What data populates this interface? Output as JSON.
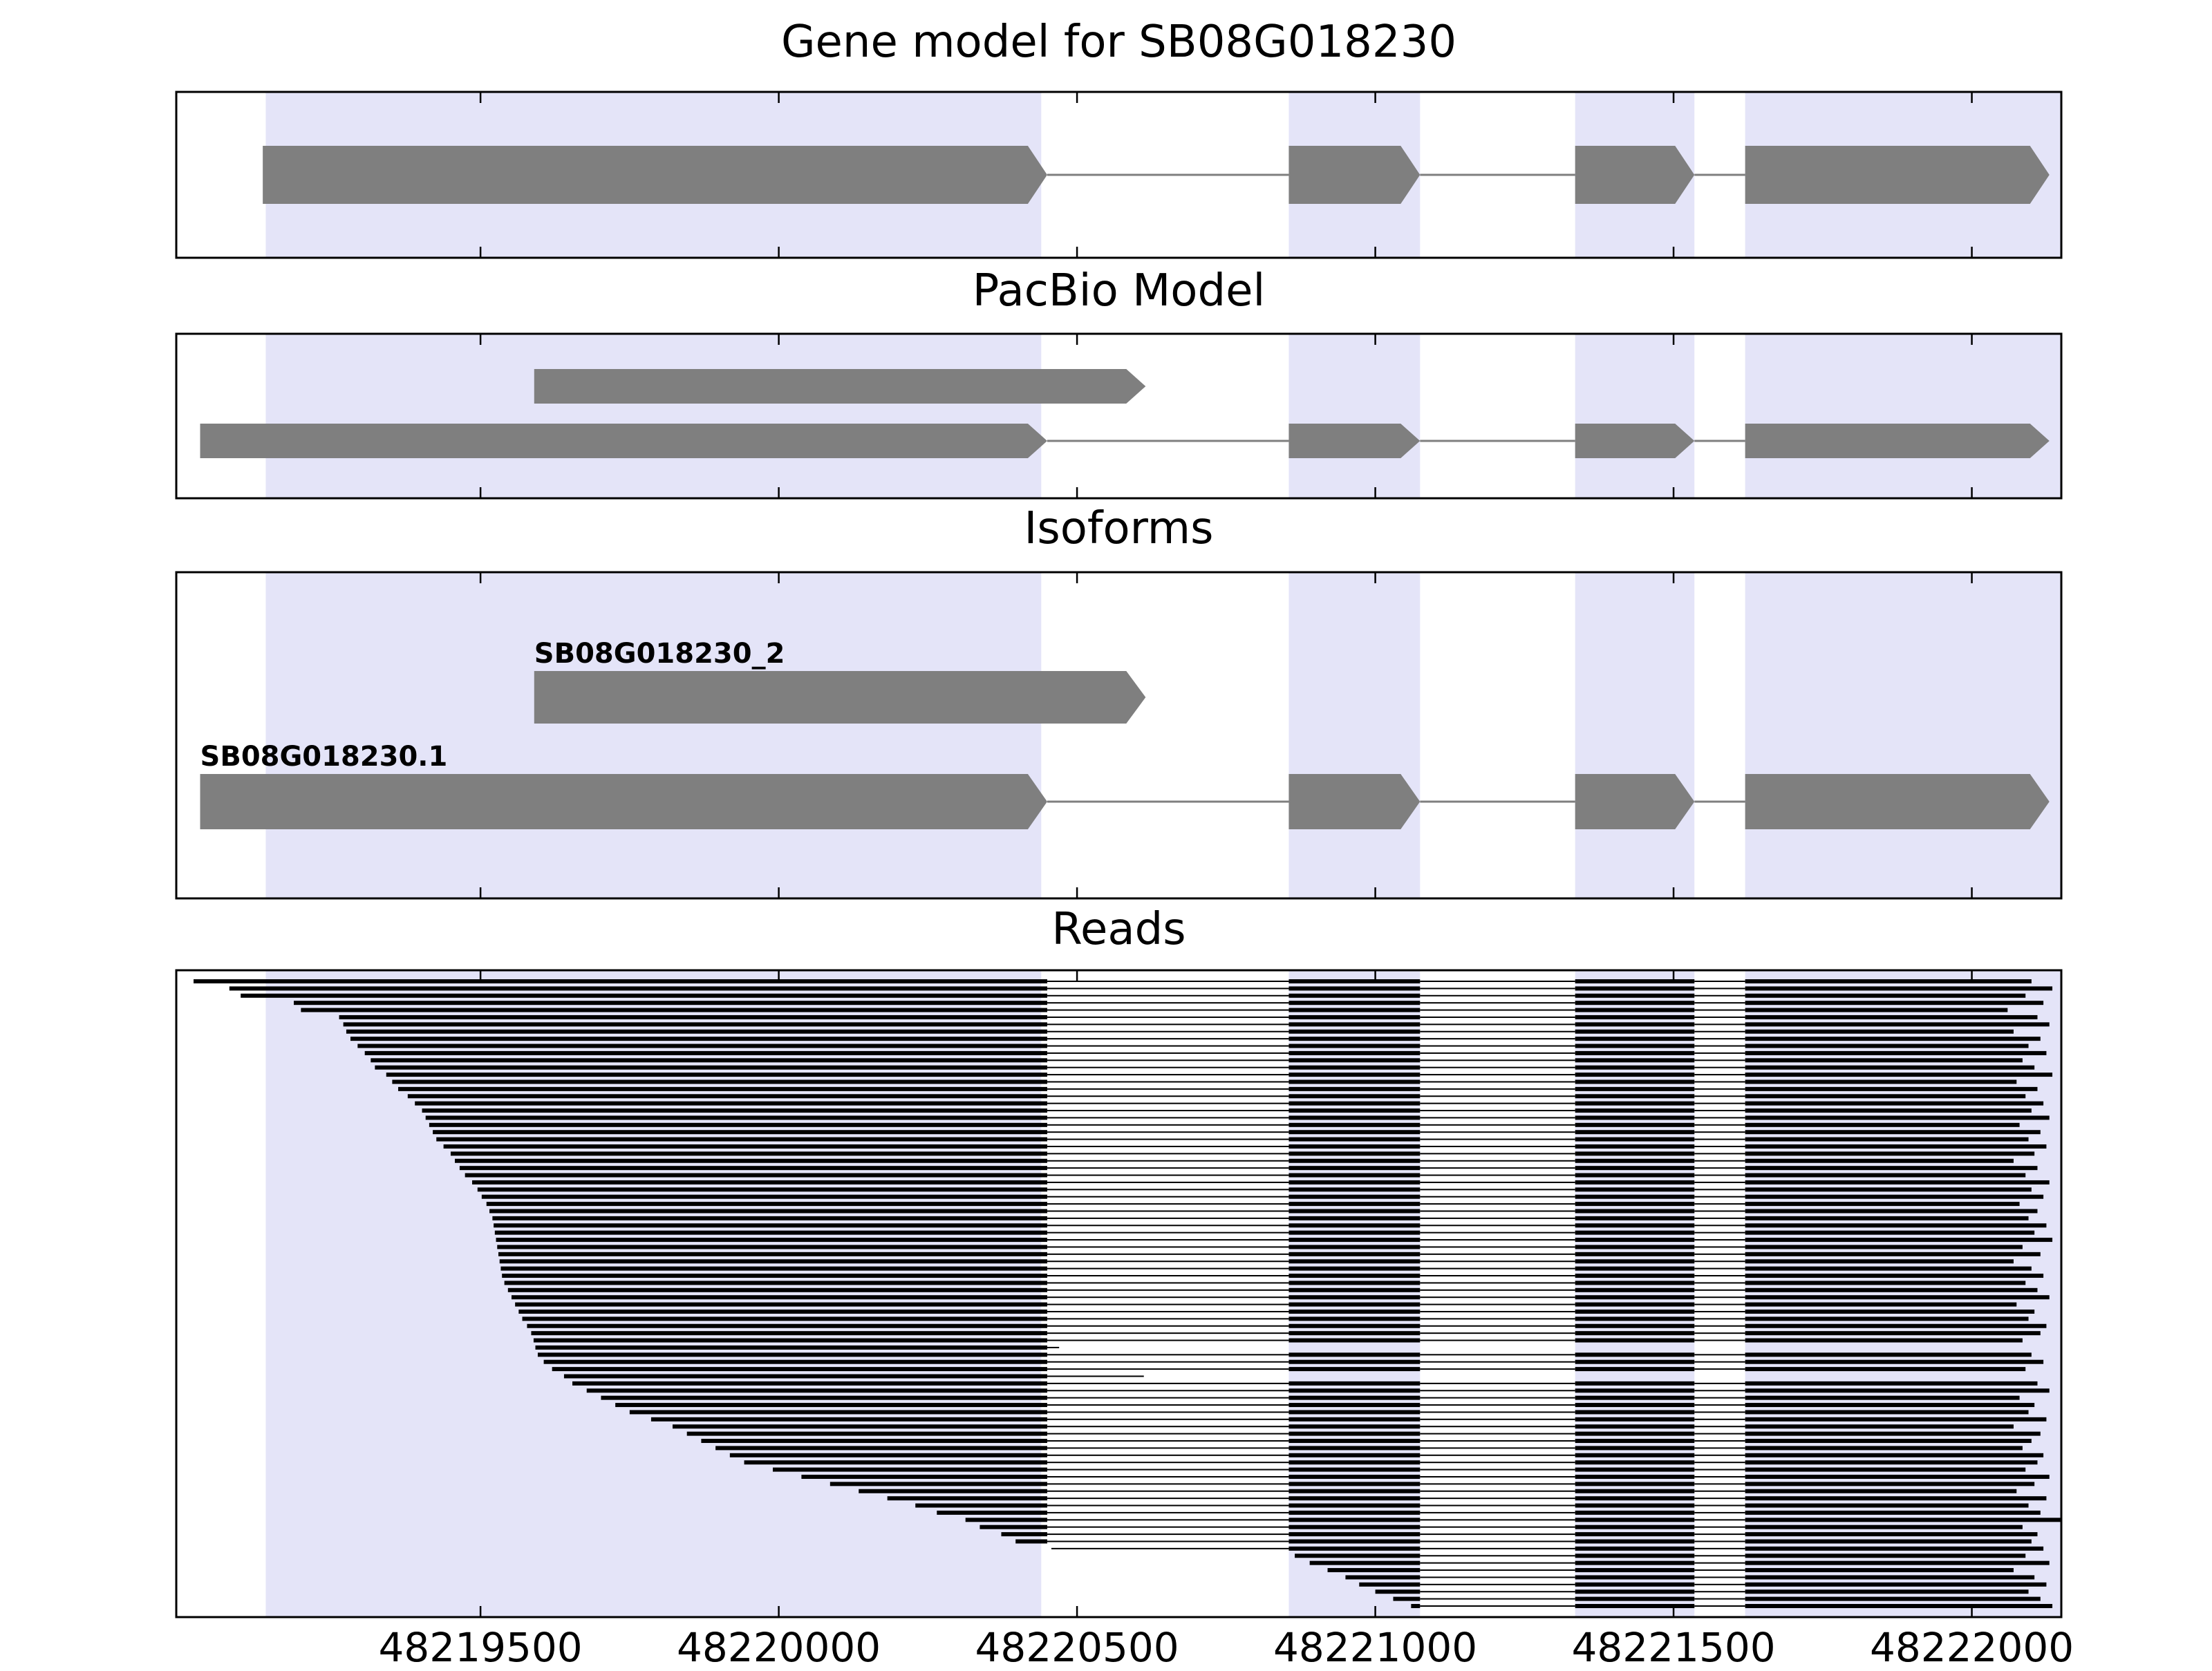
{
  "chart_data": {
    "type": "genome-browser",
    "xlim": [
      48218990,
      48222150
    ],
    "xticks": [
      48219500,
      48220000,
      48220500,
      48221000,
      48221500,
      48222000
    ],
    "colors": {
      "feature": "#7f7f7f",
      "exon_shade": "#e4e4f8",
      "read": "#000000",
      "axis": "#000000",
      "background": "#ffffff"
    },
    "shaded_regions": [
      [
        48219140,
        48220440
      ],
      [
        48220855,
        48221075
      ],
      [
        48221335,
        48221535
      ],
      [
        48221620,
        48222150
      ]
    ],
    "panels": [
      {
        "id": "gene-model",
        "title": "Gene model for SB08G018230",
        "transcripts": [
          {
            "exons": [
              [
                48219135,
                48220450
              ],
              [
                48220855,
                48221075
              ],
              [
                48221335,
                48221535
              ],
              [
                48221620,
                48222130
              ]
            ]
          }
        ]
      },
      {
        "id": "pacbio",
        "title": "PacBio Model",
        "transcripts": [
          {
            "exons": [
              [
                48219590,
                48220615
              ]
            ]
          },
          {
            "exons": [
              [
                48219030,
                48220450
              ],
              [
                48220855,
                48221075
              ],
              [
                48221335,
                48221535
              ],
              [
                48221620,
                48222130
              ]
            ]
          }
        ]
      },
      {
        "id": "isoforms",
        "title": "Isoforms",
        "transcripts": [
          {
            "label": "SB08G018230_2",
            "exons": [
              [
                48219590,
                48220615
              ]
            ]
          },
          {
            "label": "SB08G018230.1",
            "exons": [
              [
                48219030,
                48220450
              ],
              [
                48220855,
                48221075
              ],
              [
                48221335,
                48221535
              ],
              [
                48221620,
                48222130
              ]
            ]
          }
        ]
      },
      {
        "id": "reads",
        "title": "Reads",
        "reads": [
          [
            48219019,
            48222100
          ],
          [
            48219079,
            48222135
          ],
          [
            48219098,
            48222090
          ],
          [
            48219187,
            48222120
          ],
          [
            48219199,
            48222060
          ],
          [
            48219263,
            48222110
          ],
          [
            48219270,
            48222130
          ],
          [
            48219275,
            48222070
          ],
          [
            48219282,
            48222115
          ],
          [
            48219294,
            48222095
          ],
          [
            48219306,
            48222125
          ],
          [
            48219316,
            48222085
          ],
          [
            48219323,
            48222105
          ],
          [
            48219342,
            48222135
          ],
          [
            48219352,
            48222075
          ],
          [
            48219362,
            48222110
          ],
          [
            48219378,
            48222090
          ],
          [
            48219390,
            48222120
          ],
          [
            48219402,
            48222100
          ],
          [
            48219408,
            48222130
          ],
          [
            48219414,
            48222080
          ],
          [
            48219420,
            48222115
          ],
          [
            48219426,
            48222095
          ],
          [
            48219438,
            48222125
          ],
          [
            48219450,
            48222105
          ],
          [
            48219457,
            48222070
          ],
          [
            48219465,
            48222110
          ],
          [
            48219474,
            48222090
          ],
          [
            48219486,
            48222130
          ],
          [
            48219495,
            48222100
          ],
          [
            48219502,
            48222120
          ],
          [
            48219510,
            48222080
          ],
          [
            48219515,
            48222110
          ],
          [
            48219520,
            48222095
          ],
          [
            48219522,
            48222125
          ],
          [
            48219524,
            48222105
          ],
          [
            48219526,
            48222135
          ],
          [
            48219528,
            48222085
          ],
          [
            48219530,
            48222115
          ],
          [
            48219532,
            48222070
          ],
          [
            48219534,
            48222100
          ],
          [
            48219536,
            48222120
          ],
          [
            48219540,
            48222090
          ],
          [
            48219546,
            48222110
          ],
          [
            48219552,
            48222130
          ],
          [
            48219558,
            48222075
          ],
          [
            48219564,
            48222105
          ],
          [
            48219570,
            48222095
          ],
          [
            48219578,
            48222125
          ],
          [
            48219585,
            48222115
          ],
          [
            48219589,
            48222085
          ],
          [
            48219592,
            48220470
          ],
          [
            48219596,
            48222100
          ],
          [
            48219606,
            48222120
          ],
          [
            48219620,
            48222090
          ],
          [
            48219640,
            48220612
          ],
          [
            48219654,
            48222110
          ],
          [
            48219678,
            48222130
          ],
          [
            48219702,
            48222080
          ],
          [
            48219726,
            48222105
          ],
          [
            48219750,
            48222095
          ],
          [
            48219786,
            48222125
          ],
          [
            48219822,
            48222070
          ],
          [
            48219846,
            48222115
          ],
          [
            48219870,
            48222100
          ],
          [
            48219894,
            48222085
          ],
          [
            48219918,
            48222120
          ],
          [
            48219942,
            48222110
          ],
          [
            48219990,
            48222090
          ],
          [
            48220038,
            48222130
          ],
          [
            48220086,
            48222105
          ],
          [
            48220134,
            48222075
          ],
          [
            48220182,
            48222125
          ],
          [
            48220229,
            48222095
          ],
          [
            48220265,
            48222115
          ],
          [
            48220313,
            48222150
          ],
          [
            48220337,
            48222085
          ],
          [
            48220373,
            48222110
          ],
          [
            48220397,
            48222100
          ],
          [
            48220457,
            48222120
          ],
          [
            48220865,
            48222090
          ],
          [
            48220890,
            48222130
          ],
          [
            48220920,
            48222070
          ],
          [
            48220950,
            48222105
          ],
          [
            48220973,
            48222125
          ],
          [
            48221000,
            48222095
          ],
          [
            48221030,
            48222115
          ],
          [
            48221060,
            48222135
          ]
        ]
      }
    ]
  }
}
